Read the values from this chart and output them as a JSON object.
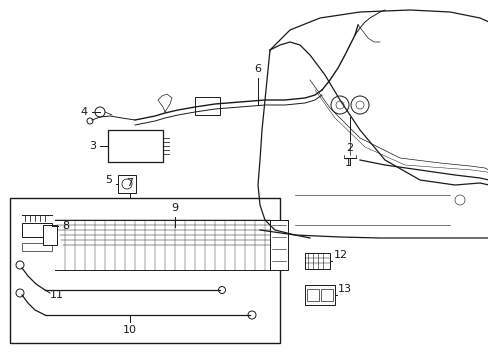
{
  "bg_color": "#ffffff",
  "line_color": "#1a1a1a",
  "figsize": [
    4.89,
    3.6
  ],
  "dpi": 100,
  "xlim": [
    0,
    489
  ],
  "ylim": [
    0,
    360
  ]
}
